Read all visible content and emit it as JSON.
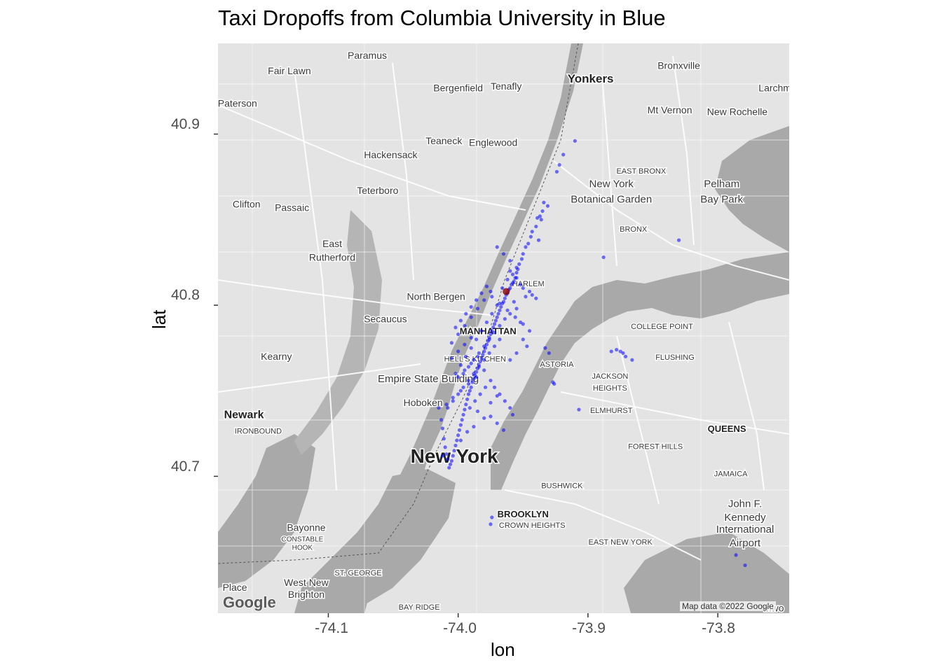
{
  "title": "Taxi Dropoffs from Columbia University in Blue",
  "map": {
    "attribution": "Map data ©2022 Google",
    "logo": "Google",
    "place_labels": [
      {
        "text": "Fair Lawn",
        "lon": -74.13,
        "lat": 40.935,
        "size": 14
      },
      {
        "text": "Paramus",
        "lon": -74.07,
        "lat": 40.944,
        "size": 14
      },
      {
        "text": "Bergenfield",
        "lon": -74.0,
        "lat": 40.925,
        "size": 14
      },
      {
        "text": "Tenafly",
        "lon": -73.963,
        "lat": 40.926,
        "size": 14
      },
      {
        "text": "Yonkers",
        "lon": -73.898,
        "lat": 40.93,
        "size": 17,
        "bold": true
      },
      {
        "text": "Bronxville",
        "lon": -73.83,
        "lat": 40.938,
        "size": 14
      },
      {
        "text": "Larchm",
        "lon": -73.756,
        "lat": 40.925,
        "size": 14
      },
      {
        "text": "Paterson",
        "lon": -74.17,
        "lat": 40.916,
        "size": 14
      },
      {
        "text": "Mt Vernon",
        "lon": -73.837,
        "lat": 40.912,
        "size": 14
      },
      {
        "text": "New Rochelle",
        "lon": -73.785,
        "lat": 40.911,
        "size": 14
      },
      {
        "text": "Teaneck",
        "lon": -74.011,
        "lat": 40.894,
        "size": 14
      },
      {
        "text": "Englewood",
        "lon": -73.973,
        "lat": 40.893,
        "size": 14
      },
      {
        "text": "Hackensack",
        "lon": -74.052,
        "lat": 40.886,
        "size": 14
      },
      {
        "text": "EAST BRONX",
        "lon": -73.859,
        "lat": 40.877,
        "size": 11
      },
      {
        "text": "New York",
        "lon": -73.882,
        "lat": 40.869,
        "size": 15
      },
      {
        "text": "Botanical Garden",
        "lon": -73.882,
        "lat": 40.86,
        "size": 15
      },
      {
        "text": "Pelham",
        "lon": -73.797,
        "lat": 40.869,
        "size": 15
      },
      {
        "text": "Bay Park",
        "lon": -73.797,
        "lat": 40.86,
        "size": 15
      },
      {
        "text": "Teterboro",
        "lon": -74.062,
        "lat": 40.865,
        "size": 14
      },
      {
        "text": "Clifton",
        "lon": -74.163,
        "lat": 40.857,
        "size": 14
      },
      {
        "text": "Passaic",
        "lon": -74.128,
        "lat": 40.855,
        "size": 14
      },
      {
        "text": "BRONX",
        "lon": -73.865,
        "lat": 40.843,
        "size": 11
      },
      {
        "text": "East",
        "lon": -74.097,
        "lat": 40.834,
        "size": 14
      },
      {
        "text": "Rutherford",
        "lon": -74.097,
        "lat": 40.826,
        "size": 14
      },
      {
        "text": "North Bergen",
        "lon": -74.017,
        "lat": 40.803,
        "size": 14
      },
      {
        "text": "HARLEM",
        "lon": -73.946,
        "lat": 40.811,
        "size": 11
      },
      {
        "text": "Secaucus",
        "lon": -74.056,
        "lat": 40.79,
        "size": 14
      },
      {
        "text": "MANHATTAN",
        "lon": -73.977,
        "lat": 40.783,
        "size": 13,
        "bold": true
      },
      {
        "text": "COLLEGE POINT",
        "lon": -73.843,
        "lat": 40.786,
        "size": 11
      },
      {
        "text": "Kearny",
        "lon": -74.14,
        "lat": 40.768,
        "size": 14
      },
      {
        "text": "HELL'S KITCHEN",
        "lon": -73.987,
        "lat": 40.767,
        "size": 11
      },
      {
        "text": "ASTORIA",
        "lon": -73.924,
        "lat": 40.764,
        "size": 11
      },
      {
        "text": "FLUSHING",
        "lon": -73.833,
        "lat": 40.768,
        "size": 11
      },
      {
        "text": "JACKSON",
        "lon": -73.883,
        "lat": 40.757,
        "size": 11
      },
      {
        "text": "HEIGHTS",
        "lon": -73.883,
        "lat": 40.75,
        "size": 11
      },
      {
        "text": "Empire State Building",
        "lon": -74.023,
        "lat": 40.755,
        "size": 15
      },
      {
        "text": "Hoboken",
        "lon": -74.027,
        "lat": 40.741,
        "size": 14
      },
      {
        "text": "ELMHURST",
        "lon": -73.882,
        "lat": 40.737,
        "size": 11
      },
      {
        "text": "Newark",
        "lon": -74.165,
        "lat": 40.734,
        "size": 16,
        "bold": true
      },
      {
        "text": "IRONBOUND",
        "lon": -74.154,
        "lat": 40.725,
        "size": 11
      },
      {
        "text": "QUEENS",
        "lon": -73.793,
        "lat": 40.726,
        "size": 13,
        "bold": true
      },
      {
        "text": "FOREST HILLS",
        "lon": -73.848,
        "lat": 40.716,
        "size": 11
      },
      {
        "text": "New York",
        "lon": -74.003,
        "lat": 40.708,
        "size": 28,
        "bold": true
      },
      {
        "text": "JAMAICA",
        "lon": -73.79,
        "lat": 40.7,
        "size": 11
      },
      {
        "text": "BUSHWICK",
        "lon": -73.92,
        "lat": 40.693,
        "size": 11
      },
      {
        "text": "BROOKLYN",
        "lon": -73.95,
        "lat": 40.676,
        "size": 13,
        "bold": true
      },
      {
        "text": "CROWN HEIGHTS",
        "lon": -73.943,
        "lat": 40.67,
        "size": 11
      },
      {
        "text": "John F.",
        "lon": -73.779,
        "lat": 40.682,
        "size": 15
      },
      {
        "text": "Kennedy",
        "lon": -73.779,
        "lat": 40.674,
        "size": 15
      },
      {
        "text": "International",
        "lon": -73.779,
        "lat": 40.667,
        "size": 15
      },
      {
        "text": "Airport",
        "lon": -73.779,
        "lat": 40.659,
        "size": 15
      },
      {
        "text": "Bayonne",
        "lon": -74.117,
        "lat": 40.668,
        "size": 14
      },
      {
        "text": "CONSTABLE",
        "lon": -74.12,
        "lat": 40.662,
        "size": 10
      },
      {
        "text": "HOOK",
        "lon": -74.12,
        "lat": 40.657,
        "size": 10
      },
      {
        "text": "EAST NEW YORK",
        "lon": -73.875,
        "lat": 40.66,
        "size": 11
      },
      {
        "text": "ST. GEORGE",
        "lon": -74.077,
        "lat": 40.642,
        "size": 11
      },
      {
        "text": "West New",
        "lon": -74.117,
        "lat": 40.636,
        "size": 14
      },
      {
        "text": "Brighton",
        "lon": -74.117,
        "lat": 40.629,
        "size": 14
      },
      {
        "text": "Place",
        "lon": -74.172,
        "lat": 40.633,
        "size": 14
      },
      {
        "text": "BAY RIDGE",
        "lon": -74.03,
        "lat": 40.622,
        "size": 11
      },
      {
        "text": "Inwo",
        "lon": -73.757,
        "lat": 40.621,
        "size": 14
      }
    ]
  },
  "chart_data": {
    "type": "scatter",
    "title": "Taxi Dropoffs from Columbia University in Blue",
    "xlabel": "lon",
    "ylabel": "lat",
    "xlim": [
      -74.185,
      -73.745
    ],
    "ylim": [
      40.62,
      40.953
    ],
    "xticks": [
      -74.1,
      -74.0,
      -73.9,
      -73.8
    ],
    "xtick_labels": [
      "-74.1",
      "-74.0",
      "-73.9",
      "-73.8"
    ],
    "yticks": [
      40.7,
      40.8,
      40.9
    ],
    "ytick_labels": [
      "40.7",
      "40.8",
      "40.9"
    ],
    "point_color": "#0000ff",
    "origin": {
      "lon": -73.963,
      "lat": 40.808,
      "color": "#8b0000"
    },
    "series": [
      {
        "lon": [
          -73.91,
          -73.919,
          -73.922,
          -73.924,
          -73.931,
          -73.935,
          -73.937,
          -73.939,
          -73.94,
          -73.943,
          -73.944,
          -73.946,
          -73.948,
          -73.95,
          -73.951,
          -73.953,
          -73.954,
          -73.955,
          -73.956,
          -73.957,
          -73.958,
          -73.959,
          -73.96,
          -73.961,
          -73.962,
          -73.963,
          -73.964,
          -73.965,
          -73.966,
          -73.967,
          -73.968,
          -73.969,
          -73.97,
          -73.971,
          -73.972,
          -73.973,
          -73.974,
          -73.975,
          -73.976,
          -73.977,
          -73.978,
          -73.979,
          -73.98,
          -73.981,
          -73.982,
          -73.983,
          -73.984,
          -73.985,
          -73.986,
          -73.987,
          -73.988,
          -73.989,
          -73.99,
          -73.991,
          -73.992,
          -73.993,
          -73.994,
          -73.995,
          -73.996,
          -73.997,
          -73.998,
          -73.999,
          -74.0,
          -74.001,
          -74.002,
          -74.003,
          -74.004,
          -74.005,
          -74.006,
          -74.007,
          -74.008,
          -74.009,
          -74.01,
          -74.011,
          -74.012,
          -74.013,
          -74.015,
          -73.96,
          -73.958,
          -73.955,
          -73.952,
          -73.95,
          -73.948,
          -73.945,
          -73.943,
          -73.94,
          -73.938,
          -73.936,
          -73.934,
          -73.96,
          -73.964,
          -73.968,
          -73.972,
          -73.976,
          -73.98,
          -73.984,
          -73.988,
          -73.992,
          -73.996,
          -73.957,
          -73.955,
          -73.952,
          -73.97,
          -73.974,
          -73.978,
          -73.982,
          -73.986,
          -73.99,
          -73.994,
          -73.998,
          -74.002,
          -73.962,
          -73.966,
          -73.95,
          -73.947,
          -73.955,
          -73.96,
          -73.945,
          -73.95,
          -73.956,
          -73.962,
          -73.968,
          -73.974,
          -73.98,
          -73.986,
          -73.992,
          -73.998,
          -74.004,
          -74.009,
          -73.985,
          -73.99,
          -73.995,
          -74.0,
          -73.975,
          -73.972,
          -73.968,
          -73.964,
          -73.96,
          -73.958,
          -73.93,
          -73.926,
          -73.955,
          -73.96,
          -73.965,
          -73.97,
          -73.975,
          -73.98,
          -73.985,
          -73.99,
          -73.995,
          -74.0,
          -74.005,
          -73.988,
          -73.993,
          -73.998,
          -73.975,
          -73.97,
          -73.965,
          -73.979,
          -73.983,
          -73.987,
          -73.991,
          -73.968,
          -73.972,
          -73.976,
          -73.98,
          -73.984,
          -73.988,
          -73.992,
          -73.996,
          -74.0,
          -74.004,
          -74.008,
          -73.978,
          -73.982,
          -73.986,
          -73.99,
          -73.994,
          -73.998,
          -74.002,
          -73.99,
          -73.995,
          -74.0,
          -74.005,
          -74.012,
          -73.985,
          -73.98,
          -73.975,
          -73.97
        ],
        "lat": [
          40.896,
          40.888,
          40.882,
          40.878,
          40.858,
          40.855,
          40.852,
          40.851,
          40.846,
          40.843,
          40.84,
          40.836,
          40.834,
          40.83,
          40.827,
          40.824,
          40.821,
          40.819,
          40.816,
          40.814,
          40.813,
          40.812,
          40.81,
          40.809,
          40.807,
          40.806,
          40.804,
          40.802,
          40.801,
          40.799,
          40.797,
          40.795,
          40.793,
          40.791,
          40.789,
          40.787,
          40.785,
          40.783,
          40.781,
          40.779,
          40.777,
          40.775,
          40.773,
          40.771,
          40.769,
          40.767,
          40.765,
          40.763,
          40.761,
          40.759,
          40.757,
          40.755,
          40.752,
          40.75,
          40.748,
          40.745,
          40.742,
          40.739,
          40.736,
          40.733,
          40.73,
          40.727,
          40.724,
          40.721,
          40.718,
          40.715,
          40.712,
          40.709,
          40.707,
          40.705,
          40.71,
          40.713,
          40.717,
          40.722,
          40.728,
          40.733,
          40.74,
          40.82,
          40.818,
          40.816,
          40.812,
          40.81,
          40.805,
          40.808,
          40.806,
          40.804,
          40.838,
          40.85,
          40.86,
          40.795,
          40.792,
          40.788,
          40.784,
          40.78,
          40.776,
          40.772,
          40.768,
          40.764,
          40.76,
          40.802,
          40.798,
          40.79,
          40.8,
          40.795,
          40.79,
          40.785,
          40.78,
          40.775,
          40.77,
          40.765,
          40.76,
          40.815,
          40.81,
          40.78,
          40.776,
          40.772,
          40.768,
          40.785,
          40.789,
          40.793,
          40.797,
          40.801,
          40.805,
          40.762,
          40.758,
          40.754,
          40.75,
          40.746,
          40.742,
          40.77,
          40.766,
          40.762,
          40.758,
          40.756,
          40.752,
          40.748,
          40.744,
          40.74,
          40.736,
          40.772,
          40.754,
          40.822,
          40.826,
          40.83,
          40.834,
          40.808,
          40.803,
          40.798,
          40.793,
          40.788,
          40.783,
          40.778,
          40.729,
          40.726,
          40.721,
          40.735,
          40.731,
          40.727,
          40.752,
          40.748,
          40.744,
          40.74,
          40.78,
          40.776,
          40.772,
          40.768,
          40.764,
          40.76,
          40.756,
          40.752,
          40.748,
          40.744,
          40.74,
          40.811,
          40.807,
          40.803,
          40.799,
          40.795,
          40.791,
          40.787,
          40.781,
          40.777,
          40.773,
          40.769,
          40.712,
          40.738,
          40.734,
          40.743,
          40.747
        ]
      },
      {
        "lon": [
          -73.866,
          -73.871,
          -73.873,
          -73.875,
          -73.878,
          -73.882,
          -73.888,
          -73.83,
          -73.933,
          -73.927,
          -73.907,
          -73.974,
          -73.975,
          -73.786,
          -73.779
        ],
        "lat": [
          40.768,
          40.77,
          40.772,
          40.773,
          40.774,
          40.773,
          40.828,
          40.838,
          40.775,
          40.755,
          40.739,
          40.676,
          40.672,
          40.654,
          40.648
        ]
      }
    ]
  }
}
